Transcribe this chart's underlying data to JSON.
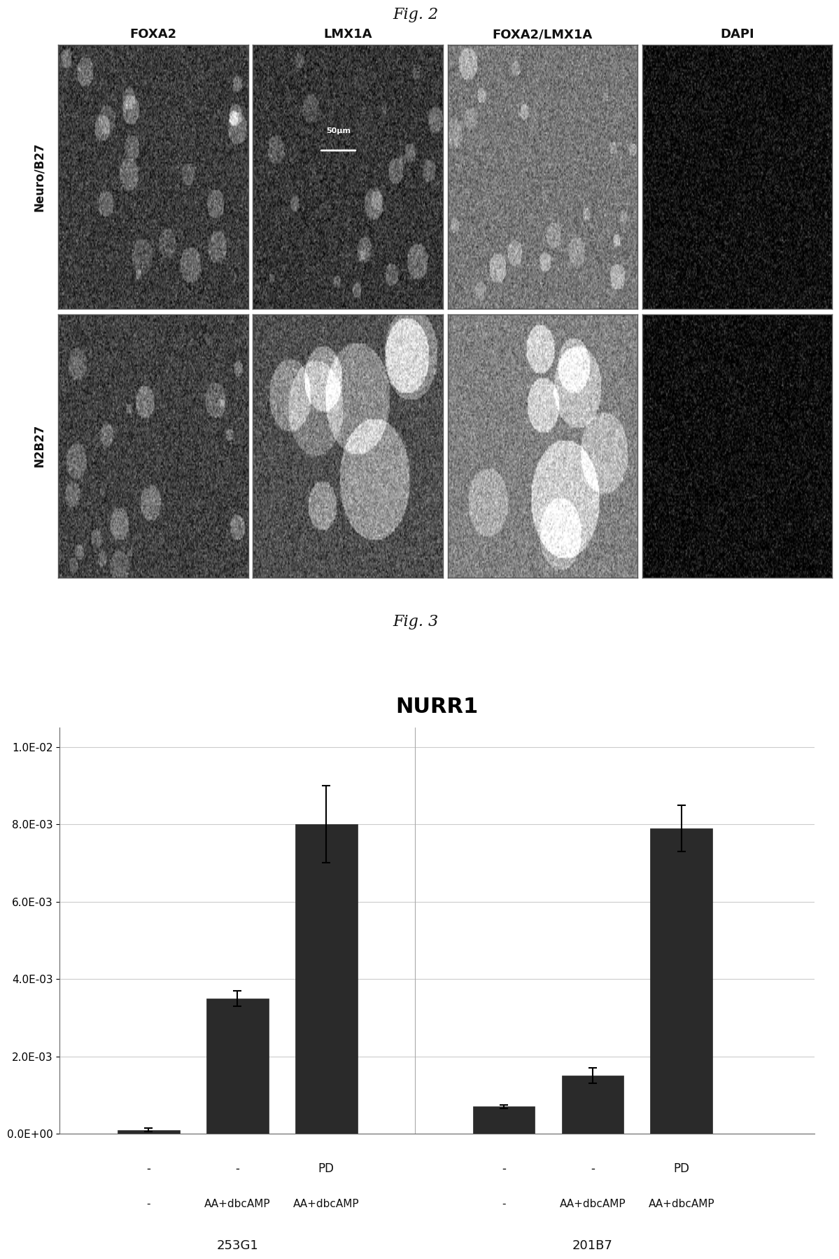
{
  "fig2_title": "Fig. 2",
  "fig3_title": "Fig. 3",
  "col_labels": [
    "FOXA2",
    "LMX1A",
    "FOXA2/LMX1A",
    "DAPI"
  ],
  "row_labels": [
    "Neuro/B27",
    "N2B27"
  ],
  "scale_bar_text": "50μm",
  "chart_title": "NURR1",
  "bar_values": [
    0.0001,
    0.0035,
    0.008,
    0.0007,
    0.0015,
    0.0079
  ],
  "bar_errors": [
    5e-05,
    0.0002,
    0.001,
    5e-05,
    0.0002,
    0.0006
  ],
  "bar_color": "#2a2a2a",
  "ylim": [
    0,
    0.0105
  ],
  "yticks": [
    0.0,
    0.002,
    0.004,
    0.006,
    0.008,
    0.01
  ],
  "ytick_labels": [
    "0.0E+00",
    "2.0E-03",
    "4.0E-03",
    "6.0E-03",
    "8.0E-03",
    "1.0E-02"
  ],
  "sub_labels_1": [
    "-",
    "-",
    "PD"
  ],
  "mid_labels_1": [
    "-",
    "AA+dbcAMP",
    "AA+dbcAMP"
  ],
  "sub_labels_2": [
    "-",
    "-",
    "PD"
  ],
  "mid_labels_2": [
    "-",
    "AA+dbcAMP",
    "AA+dbcAMP"
  ],
  "group1_name": "253G1",
  "group2_name": "201B7",
  "background_color": "#ffffff",
  "grid_color": "#cccccc",
  "font_color": "#111111"
}
